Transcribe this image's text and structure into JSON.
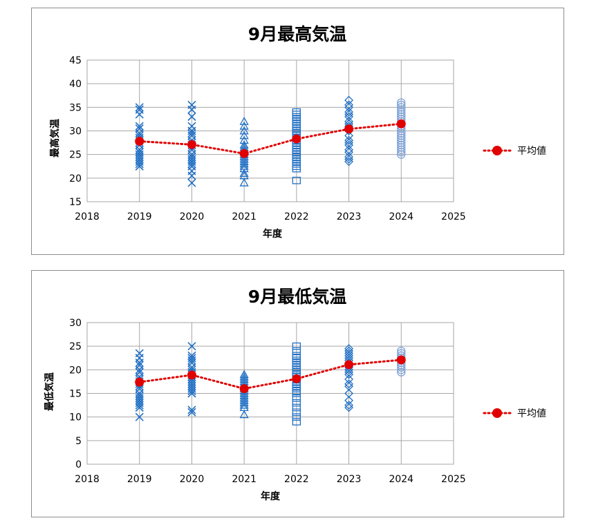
{
  "chart_data": [
    {
      "type": "scatter",
      "title": "9月最高気温",
      "xlabel": "年度",
      "ylabel": "最高気温",
      "xlim": [
        2018,
        2025
      ],
      "ylim": [
        15,
        45
      ],
      "xticks": [
        "2018",
        "2019",
        "2020",
        "2021",
        "2022",
        "2023",
        "2024",
        "2025"
      ],
      "yticks": [
        "15",
        "20",
        "25",
        "30",
        "35",
        "40",
        "45"
      ],
      "grid": true,
      "legend_position": "right",
      "points": [
        {
          "year": 2019,
          "marker": "x",
          "values": [
            35.0,
            34.5,
            33.5,
            31.0,
            30.5,
            29.5,
            29.0,
            28.5,
            28.0,
            27.5,
            27.0,
            26.0,
            25.5,
            25.0,
            24.5,
            24.0,
            23.5,
            23.0,
            22.5
          ]
        },
        {
          "year": 2020,
          "marker": "x",
          "values": [
            35.5,
            34.5,
            33.0,
            31.0,
            30.0,
            29.5,
            29.0,
            28.0,
            27.5,
            27.0,
            26.5,
            26.0,
            25.0,
            24.5,
            24.0,
            23.5,
            23.0,
            22.5,
            21.5,
            20.5,
            19.0
          ]
        },
        {
          "year": 2021,
          "marker": "triangle",
          "values": [
            32.0,
            31.0,
            30.0,
            29.0,
            28.0,
            27.0,
            26.5,
            26.0,
            25.5,
            25.0,
            24.5,
            24.0,
            23.5,
            23.0,
            22.5,
            22.0,
            21.0,
            20.5,
            19.0
          ]
        },
        {
          "year": 2022,
          "marker": "square",
          "values": [
            34.0,
            33.5,
            33.0,
            32.5,
            32.0,
            31.5,
            31.0,
            30.5,
            30.0,
            29.5,
            29.0,
            28.5,
            28.0,
            27.5,
            27.0,
            26.5,
            26.0,
            25.5,
            25.0,
            24.5,
            24.0,
            23.5,
            23.0,
            22.5,
            22.0,
            19.5
          ]
        },
        {
          "year": 2023,
          "marker": "diamond",
          "values": [
            36.5,
            35.5,
            35.0,
            34.0,
            33.5,
            33.0,
            32.0,
            31.5,
            31.0,
            30.5,
            30.0,
            29.0,
            28.0,
            27.5,
            27.0,
            26.0,
            25.5,
            24.5,
            24.0,
            23.5
          ]
        },
        {
          "year": 2024,
          "marker": "circle",
          "values": [
            36.0,
            35.5,
            35.0,
            34.5,
            34.0,
            33.5,
            33.0,
            32.5,
            32.0,
            31.5,
            31.0,
            30.5,
            30.0,
            29.5,
            29.0,
            28.5,
            28.0,
            27.5,
            27.0,
            26.5,
            26.0,
            25.5,
            25.0
          ]
        }
      ],
      "series": [
        {
          "name": "平均値",
          "x": [
            2019,
            2020,
            2021,
            2022,
            2023,
            2024
          ],
          "values": [
            27.8,
            27.1,
            25.2,
            28.3,
            30.4,
            31.5
          ]
        }
      ]
    },
    {
      "type": "scatter",
      "title": "9月最低気温",
      "xlabel": "年度",
      "ylabel": "最低気温",
      "xlim": [
        2018,
        2025
      ],
      "ylim": [
        0,
        30
      ],
      "xticks": [
        "2018",
        "2019",
        "2020",
        "2021",
        "2022",
        "2023",
        "2024",
        "2025"
      ],
      "yticks": [
        "0",
        "5",
        "10",
        "15",
        "20",
        "25",
        "30"
      ],
      "grid": true,
      "legend_position": "right",
      "points": [
        {
          "year": 2019,
          "marker": "x",
          "values": [
            23.5,
            22.5,
            21.5,
            21.0,
            20.0,
            19.5,
            18.5,
            18.0,
            17.5,
            17.0,
            16.5,
            16.0,
            15.0,
            14.5,
            14.0,
            13.5,
            13.0,
            12.5,
            12.0,
            10.0
          ]
        },
        {
          "year": 2020,
          "marker": "x",
          "values": [
            25.0,
            23.0,
            22.5,
            22.0,
            21.5,
            20.5,
            20.0,
            19.5,
            19.0,
            18.5,
            18.0,
            17.5,
            17.0,
            16.5,
            16.0,
            15.5,
            15.0,
            11.5,
            11.0
          ]
        },
        {
          "year": 2021,
          "marker": "triangle",
          "values": [
            19.0,
            18.5,
            18.0,
            17.5,
            17.0,
            16.5,
            16.0,
            15.5,
            15.0,
            14.5,
            14.0,
            13.5,
            13.0,
            12.5,
            12.0,
            10.5
          ]
        },
        {
          "year": 2022,
          "marker": "square",
          "values": [
            25.0,
            24.0,
            23.0,
            22.5,
            22.0,
            21.5,
            21.0,
            20.5,
            20.0,
            19.5,
            19.0,
            18.5,
            18.0,
            17.5,
            17.0,
            16.5,
            16.0,
            15.5,
            15.0,
            14.0,
            13.0,
            12.0,
            11.0,
            10.0,
            9.0
          ]
        },
        {
          "year": 2023,
          "marker": "diamond",
          "values": [
            24.5,
            24.0,
            23.5,
            23.0,
            22.5,
            22.0,
            21.5,
            21.0,
            20.5,
            20.0,
            19.5,
            19.0,
            18.0,
            17.0,
            16.5,
            15.0,
            13.5,
            12.5,
            12.0
          ]
        },
        {
          "year": 2024,
          "marker": "circle",
          "values": [
            24.0,
            23.5,
            23.0,
            22.5,
            22.0,
            21.5,
            21.0,
            20.5,
            20.0,
            19.5
          ]
        }
      ],
      "series": [
        {
          "name": "平均値",
          "x": [
            2019,
            2020,
            2021,
            2022,
            2023,
            2024
          ],
          "values": [
            17.4,
            18.9,
            16.0,
            18.1,
            21.1,
            22.1
          ]
        }
      ]
    }
  ],
  "colors": {
    "marker": "#1f6fc5",
    "marker_2024": "#7fa3d9",
    "average": "#e00000",
    "grid": "#a6a6a6",
    "axis": "#808080"
  }
}
